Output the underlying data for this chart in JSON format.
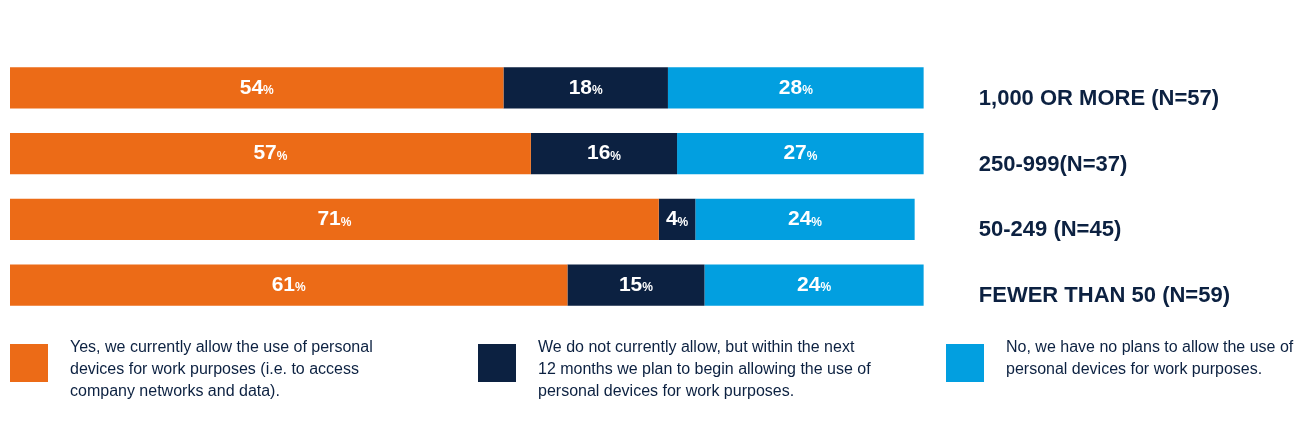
{
  "chart_data": {
    "type": "bar",
    "orientation": "horizontal",
    "stacked": true,
    "categories": [
      "1,000 OR MORE (N=57)",
      "250-999(N=37)",
      "50-249 (N=45)",
      "FEWER THAN 50 (N=59)"
    ],
    "series": [
      {
        "name": "Yes, we currently allow the use of personal devices for work purposes (i.e. to access company networks and data).",
        "color": "#ec6b17",
        "values": [
          54,
          57,
          71,
          61
        ],
        "value_labels": [
          "54%",
          "57%",
          "71%",
          "61%"
        ]
      },
      {
        "name": "We do not currently allow, but within the next 12 months we plan to begin allowing the use of personal devices for work purposes.",
        "color": "#0c2141",
        "values": [
          18,
          16,
          4,
          15
        ],
        "value_labels": [
          "18%",
          "16%",
          "4%",
          "15%"
        ]
      },
      {
        "name": "No, we have no plans to allow the use of personal devices for work purposes.",
        "color": "#029fe0",
        "values": [
          28,
          27,
          24,
          24
        ],
        "value_labels": [
          "28%",
          "27%",
          "24%",
          "24%"
        ]
      }
    ],
    "xlim": [
      0,
      100
    ],
    "tick_labels": "y",
    "legend": "bottom"
  }
}
